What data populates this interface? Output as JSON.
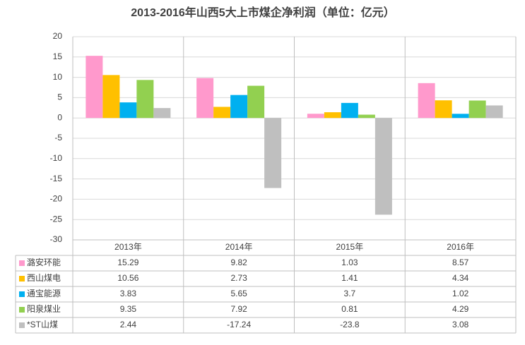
{
  "chart_data": {
    "type": "bar",
    "title": "2013-2016年山西5大上市煤企净利润（单位：亿元）",
    "categories": [
      "2013年",
      "2014年",
      "2015年",
      "2016年"
    ],
    "series": [
      {
        "name": "潞安环能",
        "color": "#ff99cc",
        "values": [
          15.29,
          9.82,
          1.03,
          8.57
        ]
      },
      {
        "name": "西山煤电",
        "color": "#ffc000",
        "values": [
          10.56,
          2.73,
          1.41,
          4.34
        ]
      },
      {
        "name": "通宝能源",
        "color": "#00b0f0",
        "values": [
          3.83,
          5.65,
          3.7,
          1.02
        ]
      },
      {
        "name": "阳泉煤业",
        "color": "#92d050",
        "values": [
          9.35,
          7.92,
          0.81,
          4.29
        ]
      },
      {
        "name": "*ST山煤",
        "color": "#bfbfbf",
        "values": [
          2.44,
          -17.24,
          -23.8,
          3.08
        ]
      }
    ],
    "ylim": [
      -30,
      20
    ],
    "yticks": [
      20,
      15,
      10,
      5,
      0,
      -5,
      -10,
      -15,
      -20,
      -25,
      -30
    ],
    "grid": true
  }
}
